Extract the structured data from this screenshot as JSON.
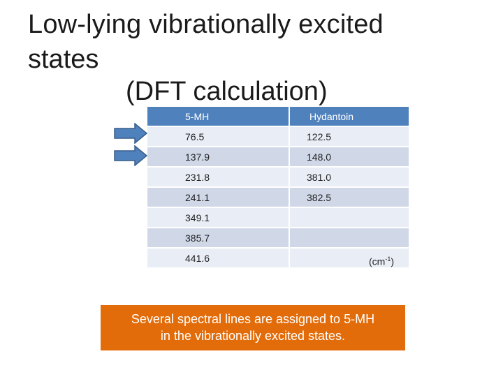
{
  "title": {
    "line1": "Low-lying vibrationally excited",
    "line2": "states",
    "line3": "(DFT calculation)"
  },
  "table": {
    "headers": [
      "5-MH",
      "Hydantoin"
    ],
    "rows": [
      [
        "76.5",
        "122.5"
      ],
      [
        "137.9",
        "148.0"
      ],
      [
        "231.8",
        "381.0"
      ],
      [
        "241.1",
        "382.5"
      ],
      [
        "349.1",
        ""
      ],
      [
        "385.7",
        ""
      ],
      [
        "441.6",
        ""
      ]
    ]
  },
  "unit": {
    "base": "(cm",
    "exp": "-1",
    "close": ")"
  },
  "callout": {
    "line1": "Several spectral lines are assigned to 5-MH",
    "line2": "in the vibrationally excited states."
  },
  "colors": {
    "header": "#4f81bd",
    "arrow": "#4f81bd",
    "callout": "#e36c0a"
  }
}
